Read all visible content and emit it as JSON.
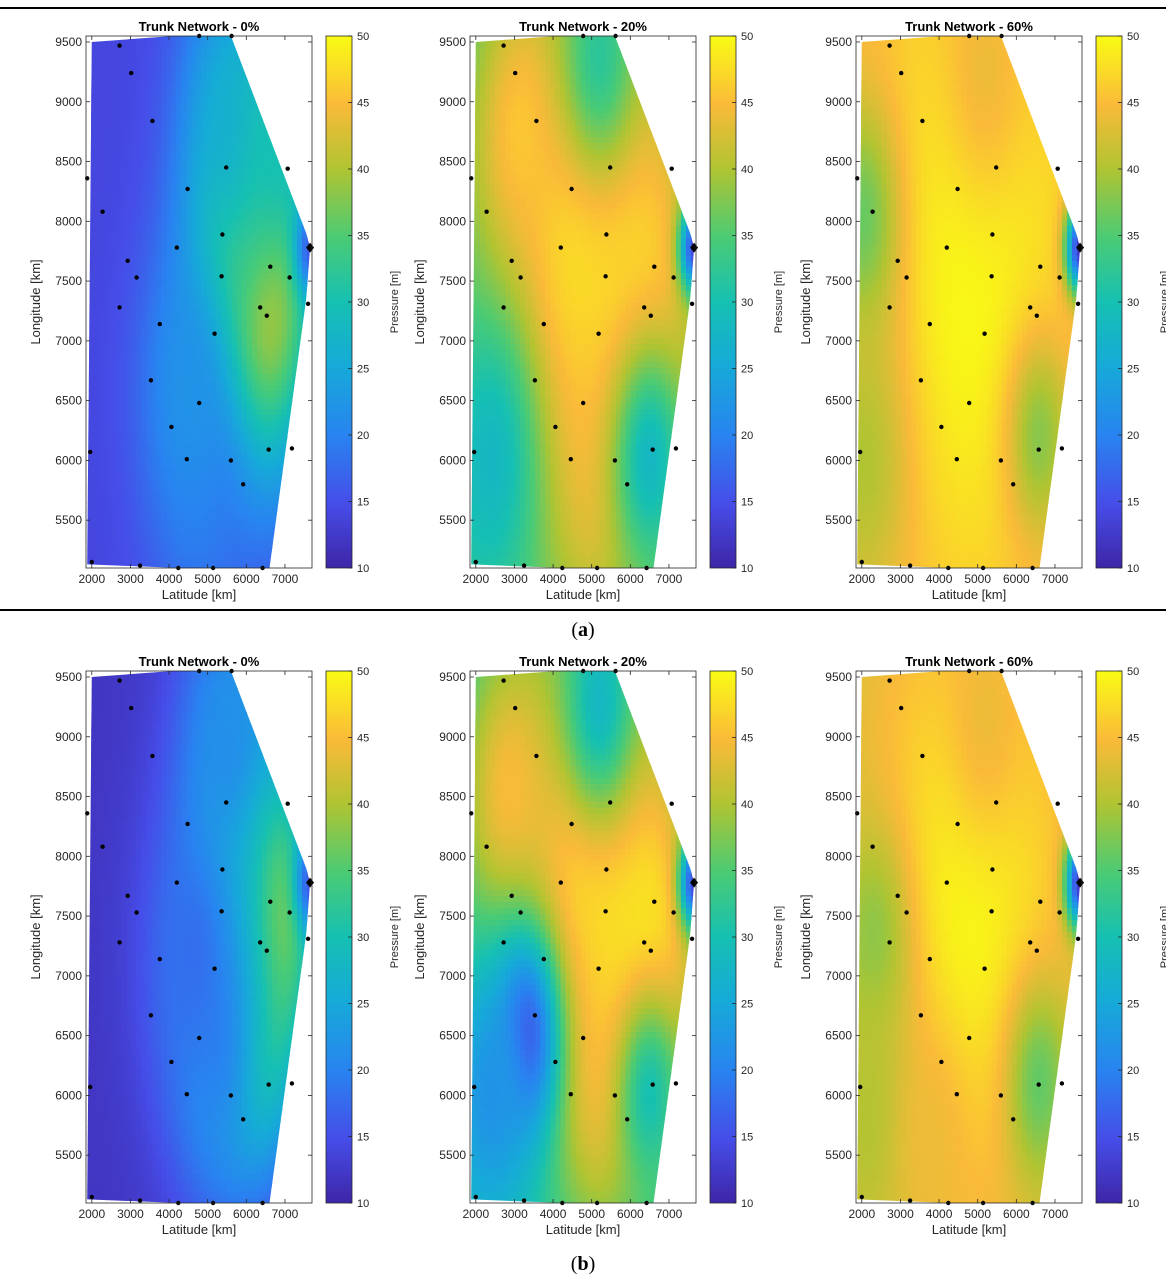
{
  "captions": {
    "a": "a",
    "b": "b"
  },
  "colorbar": {
    "label": "Pressure [m]",
    "ticks": [
      10,
      15,
      20,
      25,
      30,
      35,
      40,
      45,
      50
    ]
  },
  "chart_data": [
    {
      "type": "heatmap",
      "panel": "a",
      "title": "Trunk Network - 0%",
      "xlabel": "Latitude [km]",
      "ylabel": "Longitude [km]",
      "xlim": [
        1850,
        7700
      ],
      "ylim": [
        5100,
        9550
      ],
      "xticks": [
        2000,
        3000,
        4000,
        5000,
        6000,
        7000
      ],
      "yticks": [
        5500,
        6000,
        6500,
        7000,
        7500,
        8000,
        8500,
        9000,
        9500
      ],
      "clim": [
        10,
        50
      ],
      "colorbar_label": "Pressure [m]",
      "field_description": "low pressure (~12-18 m, dark blue) across west and north; high pressure (~40-48 m, yellow/orange) in east-center near x 5500-7000, y 6500-8000; minimum near source at east edge"
    },
    {
      "type": "heatmap",
      "panel": "a",
      "title": "Trunk Network - 20%",
      "xlabel": "Latitude [km]",
      "ylabel": "Longitude [km]",
      "xlim": [
        1850,
        7700
      ],
      "ylim": [
        5100,
        9550
      ],
      "xticks": [
        2000,
        3000,
        4000,
        5000,
        6000,
        7000
      ],
      "yticks": [
        5500,
        6000,
        6500,
        7000,
        7500,
        8000,
        8500,
        9000,
        9500
      ],
      "clim": [
        10,
        50
      ],
      "colorbar_label": "Pressure [m]"
    },
    {
      "type": "heatmap",
      "panel": "a",
      "title": "Trunk Network - 60%",
      "xlabel": "Latitude [km]",
      "ylabel": "Longitude [km]",
      "xlim": [
        1850,
        7700
      ],
      "ylim": [
        5100,
        9550
      ],
      "xticks": [
        2000,
        3000,
        4000,
        5000,
        6000,
        7000
      ],
      "yticks": [
        5500,
        6000,
        6500,
        7000,
        7500,
        8000,
        8500,
        9000,
        9500
      ],
      "clim": [
        10,
        50
      ],
      "colorbar_label": "Pressure [m]"
    },
    {
      "type": "heatmap",
      "panel": "b",
      "title": "Trunk Network - 0%",
      "xlabel": "Latitude [km]",
      "ylabel": "Longitude [km]",
      "xlim": [
        1850,
        7700
      ],
      "ylim": [
        5100,
        9550
      ],
      "xticks": [
        2000,
        3000,
        4000,
        5000,
        6000,
        7000
      ],
      "yticks": [
        5500,
        6000,
        6500,
        7000,
        7500,
        8000,
        8500,
        9000,
        9500
      ],
      "clim": [
        10,
        50
      ],
      "colorbar_label": "Pressure [m]"
    },
    {
      "type": "heatmap",
      "panel": "b",
      "title": "Trunk Network - 20%",
      "xlabel": "Latitude [km]",
      "ylabel": "Longitude [km]",
      "xlim": [
        1850,
        7700
      ],
      "ylim": [
        5100,
        9550
      ],
      "xticks": [
        2000,
        3000,
        4000,
        5000,
        6000,
        7000
      ],
      "yticks": [
        5500,
        6000,
        6500,
        7000,
        7500,
        8000,
        8500,
        9000,
        9500
      ],
      "clim": [
        10,
        50
      ],
      "colorbar_label": "Pressure [m]"
    },
    {
      "type": "heatmap",
      "panel": "b",
      "title": "Trunk Network - 60%",
      "xlabel": "Latitude [km]",
      "ylabel": "Longitude [km]",
      "xlim": [
        1850,
        7700
      ],
      "ylim": [
        5100,
        9550
      ],
      "xticks": [
        2000,
        3000,
        4000,
        5000,
        6000,
        7000
      ],
      "yticks": [
        5500,
        6000,
        6500,
        7000,
        7500,
        8000,
        8500,
        9000,
        9500
      ],
      "clim": [
        10,
        50
      ],
      "colorbar_label": "Pressure [m]"
    }
  ],
  "domain": {
    "boundary": [
      [
        1880,
        5130
      ],
      [
        2000,
        9500
      ],
      [
        4100,
        9550
      ],
      [
        5600,
        9550
      ],
      [
        7550,
        7900
      ],
      [
        7650,
        7780
      ],
      [
        7550,
        7350
      ],
      [
        6600,
        5100
      ],
      [
        4300,
        5100
      ],
      [
        1880,
        5130
      ]
    ],
    "nodes": [
      [
        2720,
        9470
      ],
      [
        4780,
        9550
      ],
      [
        5620,
        9550
      ],
      [
        3020,
        9240
      ],
      [
        3570,
        8840
      ],
      [
        1880,
        8360
      ],
      [
        5480,
        8450
      ],
      [
        7070,
        8440
      ],
      [
        4480,
        8270
      ],
      [
        2280,
        8080
      ],
      [
        5380,
        7890
      ],
      [
        4200,
        7780
      ],
      [
        2930,
        7670
      ],
      [
        3160,
        7530
      ],
      [
        5360,
        7540
      ],
      [
        6620,
        7620
      ],
      [
        7120,
        7530
      ],
      [
        2720,
        7280
      ],
      [
        6360,
        7280
      ],
      [
        6530,
        7210
      ],
      [
        7600,
        7310
      ],
      [
        3760,
        7140
      ],
      [
        5180,
        7060
      ],
      [
        3530,
        6670
      ],
      [
        4780,
        6480
      ],
      [
        4060,
        6280
      ],
      [
        4460,
        6010
      ],
      [
        5600,
        6000
      ],
      [
        6580,
        6090
      ],
      [
        7180,
        6100
      ],
      [
        5920,
        5800
      ],
      [
        1960,
        6070
      ],
      [
        2000,
        5150
      ],
      [
        3250,
        5120
      ],
      [
        4240,
        5100
      ],
      [
        5140,
        5100
      ],
      [
        6420,
        5100
      ]
    ],
    "source": [
      7650,
      7780
    ]
  },
  "fields": {
    "a0": {
      "base": 14,
      "peaks": [
        [
          6300,
          7400,
          44,
          1100
        ],
        [
          5900,
          7800,
          42,
          700
        ],
        [
          4800,
          5500,
          18,
          900
        ],
        [
          5600,
          8900,
          26,
          900
        ],
        [
          6800,
          8700,
          30,
          700
        ],
        [
          4500,
          6600,
          22,
          900
        ]
      ],
      "sink": 16
    },
    "a20": {
      "base": 33,
      "peaks": [
        [
          4800,
          7600,
          49,
          1800
        ],
        [
          3200,
          8700,
          46,
          800
        ],
        [
          5400,
          6200,
          44,
          900
        ],
        [
          6000,
          7200,
          48,
          1200
        ],
        [
          2400,
          6000,
          28,
          900
        ],
        [
          6500,
          6000,
          28,
          700
        ],
        [
          5200,
          9400,
          32,
          700
        ]
      ],
      "sink": 14
    },
    "a60": {
      "base": 44,
      "peaks": [
        [
          4800,
          7500,
          50,
          2000
        ],
        [
          2000,
          8000,
          36,
          700
        ],
        [
          2000,
          6000,
          40,
          900
        ],
        [
          6600,
          6200,
          38,
          600
        ],
        [
          5200,
          9300,
          44,
          800
        ]
      ],
      "sink": 12
    },
    "b0": {
      "base": 12,
      "peaks": [
        [
          6400,
          7500,
          46,
          1000
        ],
        [
          5800,
          8000,
          44,
          700
        ],
        [
          6000,
          6600,
          38,
          800
        ],
        [
          5200,
          6300,
          22,
          900
        ],
        [
          5600,
          9000,
          22,
          1000
        ],
        [
          4600,
          7200,
          18,
          1000
        ]
      ],
      "sink": 16
    },
    "b20": {
      "base": 30,
      "peaks": [
        [
          5000,
          7900,
          49,
          1600
        ],
        [
          2900,
          8500,
          45,
          900
        ],
        [
          5300,
          6300,
          44,
          900
        ],
        [
          6300,
          7200,
          49,
          1100
        ],
        [
          3300,
          6500,
          14,
          600
        ],
        [
          2400,
          6000,
          22,
          800
        ],
        [
          5200,
          9300,
          28,
          700
        ],
        [
          6500,
          6000,
          30,
          600
        ]
      ],
      "sink": 14
    },
    "b60": {
      "base": 42,
      "peaks": [
        [
          4800,
          7700,
          50,
          1800
        ],
        [
          2300,
          7300,
          38,
          700
        ],
        [
          2300,
          5800,
          40,
          800
        ],
        [
          6600,
          6100,
          36,
          600
        ],
        [
          5200,
          9200,
          44,
          800
        ],
        [
          3800,
          5600,
          44,
          700
        ]
      ],
      "sink": 12
    }
  }
}
